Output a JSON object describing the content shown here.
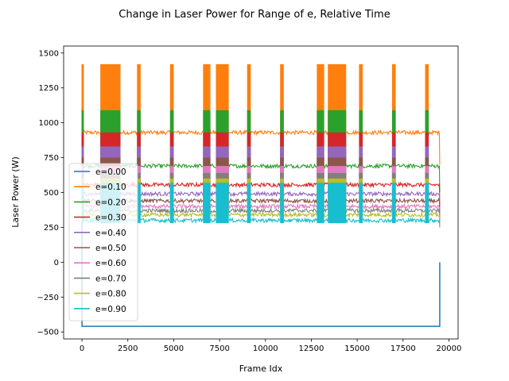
{
  "chart_data": {
    "type": "line",
    "title": "Change in Laser Power for Range of e, Relative Time",
    "xlabel": "Frame Idx",
    "ylabel": "Laser Power (W)",
    "xlim": [
      -1000,
      20500
    ],
    "ylim": [
      -550,
      1550
    ],
    "xticks": [
      0,
      2500,
      5000,
      7500,
      10000,
      12500,
      15000,
      17500,
      20000
    ],
    "yticks": [
      -500,
      -250,
      0,
      250,
      500,
      750,
      1000,
      1250,
      1500
    ],
    "x_end": 19500,
    "legend_position": "lower-left",
    "burst_intervals": [
      [
        0,
        100
      ],
      [
        1000,
        2100
      ],
      [
        3000,
        3200
      ],
      [
        4800,
        5000
      ],
      [
        6600,
        7000
      ],
      [
        7300,
        8000
      ],
      [
        9000,
        9200
      ],
      [
        10800,
        11000
      ],
      [
        12800,
        13200
      ],
      [
        13400,
        14400
      ],
      [
        15100,
        15300
      ],
      [
        16900,
        17100
      ],
      [
        18700,
        18900
      ]
    ],
    "series": [
      {
        "name": "e=0.00",
        "color": "#1f77b4",
        "baseline": -460,
        "peak": -460,
        "start": 285,
        "end_value": 0
      },
      {
        "name": "e=0.10",
        "color": "#ff7f0e",
        "baseline": 930,
        "peak": 1420,
        "start": 1420,
        "end_value": 700
      },
      {
        "name": "e=0.20",
        "color": "#2ca02c",
        "baseline": 690,
        "peak": 1090,
        "start": 1090,
        "end_value": 500
      },
      {
        "name": "e=0.30",
        "color": "#d62728",
        "baseline": 555,
        "peak": 930,
        "start": 930,
        "end_value": 400
      },
      {
        "name": "e=0.40",
        "color": "#9467bd",
        "baseline": 490,
        "peak": 830,
        "start": 830,
        "end_value": 350
      },
      {
        "name": "e=0.50",
        "color": "#8c564b",
        "baseline": 440,
        "peak": 750,
        "start": 750,
        "end_value": 320
      },
      {
        "name": "e=0.60",
        "color": "#e377c2",
        "baseline": 400,
        "peak": 690,
        "start": 690,
        "end_value": 300
      },
      {
        "name": "e=0.70",
        "color": "#7f7f7f",
        "baseline": 370,
        "peak": 640,
        "start": 640,
        "end_value": 280
      },
      {
        "name": "e=0.80",
        "color": "#bcbd22",
        "baseline": 340,
        "peak": 600,
        "start": 600,
        "end_value": 260
      },
      {
        "name": "e=0.90",
        "color": "#17becf",
        "baseline": 300,
        "peak": 570,
        "start": 570,
        "end_value": 250
      }
    ]
  }
}
